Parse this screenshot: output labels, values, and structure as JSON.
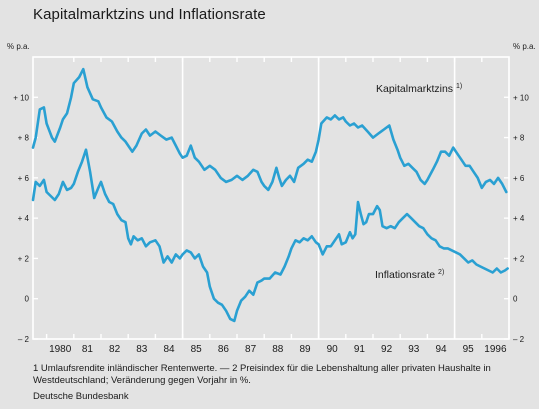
{
  "title": "Kapitalmarktzins und Inflationsrate",
  "footnote": {
    "line1": "1 Umlaufsrendite inländischer Rentenwerte. — 2 Preisindex für die Lebenshaltung aller privaten Haushalte in",
    "line2": "Westdeutschland; Veränderung gegen Vorjahr in %."
  },
  "source": "Deutsche Bundesbank",
  "chart_data": {
    "type": "line",
    "y_unit_left": "% p.a.",
    "y_unit_right": "% p.a.",
    "ylim": [
      -2,
      12
    ],
    "yticks": [
      -2,
      0,
      2,
      4,
      6,
      8,
      10
    ],
    "ytick_labels": [
      "– 2",
      "0",
      "+ 2",
      "+ 4",
      "+ 6",
      "+ 8",
      "+ 10"
    ],
    "xlim": [
      1979.5,
      1997.0
    ],
    "year_labels": [
      "1980",
      "81",
      "82",
      "83",
      "84",
      "85",
      "86",
      "87",
      "88",
      "89",
      "90",
      "91",
      "92",
      "93",
      "94",
      "95",
      "1996"
    ],
    "year_starts": [
      1980,
      1981,
      1982,
      1983,
      1984,
      1985,
      1986,
      1987,
      1988,
      1989,
      1990,
      1991,
      1992,
      1993,
      1994,
      1995,
      1996
    ],
    "grid_lines_at": [
      1985,
      1990,
      1995
    ],
    "color": "#2aa0d2",
    "series": [
      {
        "name": "Kapitalmarktzins",
        "footnote_mark": "1)",
        "points": [
          [
            1979.5,
            7.5
          ],
          [
            1979.6,
            8.0
          ],
          [
            1979.75,
            9.4
          ],
          [
            1979.9,
            9.5
          ],
          [
            1980.0,
            8.7
          ],
          [
            1980.2,
            8.0
          ],
          [
            1980.3,
            7.8
          ],
          [
            1980.5,
            8.5
          ],
          [
            1980.6,
            8.9
          ],
          [
            1980.75,
            9.2
          ],
          [
            1980.9,
            10.0
          ],
          [
            1981.0,
            10.7
          ],
          [
            1981.2,
            11.0
          ],
          [
            1981.35,
            11.4
          ],
          [
            1981.5,
            10.5
          ],
          [
            1981.7,
            9.9
          ],
          [
            1981.9,
            9.8
          ],
          [
            1982.0,
            9.5
          ],
          [
            1982.2,
            9.0
          ],
          [
            1982.4,
            8.8
          ],
          [
            1982.6,
            8.3
          ],
          [
            1982.75,
            8.0
          ],
          [
            1982.9,
            7.8
          ],
          [
            1983.0,
            7.6
          ],
          [
            1983.15,
            7.3
          ],
          [
            1983.3,
            7.6
          ],
          [
            1983.5,
            8.2
          ],
          [
            1983.65,
            8.4
          ],
          [
            1983.8,
            8.1
          ],
          [
            1984.0,
            8.3
          ],
          [
            1984.2,
            8.1
          ],
          [
            1984.4,
            7.9
          ],
          [
            1984.6,
            8.0
          ],
          [
            1984.75,
            7.6
          ],
          [
            1984.9,
            7.2
          ],
          [
            1985.0,
            7.0
          ],
          [
            1985.15,
            7.1
          ],
          [
            1985.3,
            7.6
          ],
          [
            1985.45,
            7.0
          ],
          [
            1985.6,
            6.8
          ],
          [
            1985.8,
            6.4
          ],
          [
            1986.0,
            6.6
          ],
          [
            1986.2,
            6.4
          ],
          [
            1986.4,
            6.0
          ],
          [
            1986.6,
            5.8
          ],
          [
            1986.8,
            5.9
          ],
          [
            1987.0,
            6.1
          ],
          [
            1987.2,
            5.9
          ],
          [
            1987.4,
            6.1
          ],
          [
            1987.6,
            6.4
          ],
          [
            1987.75,
            6.3
          ],
          [
            1987.9,
            5.8
          ],
          [
            1988.0,
            5.6
          ],
          [
            1988.15,
            5.4
          ],
          [
            1988.3,
            5.8
          ],
          [
            1988.45,
            6.5
          ],
          [
            1988.55,
            6.0
          ],
          [
            1988.65,
            5.6
          ],
          [
            1988.8,
            5.9
          ],
          [
            1988.95,
            6.1
          ],
          [
            1989.1,
            5.8
          ],
          [
            1989.25,
            6.5
          ],
          [
            1989.45,
            6.7
          ],
          [
            1989.6,
            6.9
          ],
          [
            1989.75,
            6.8
          ],
          [
            1989.9,
            7.3
          ],
          [
            1990.0,
            7.9
          ],
          [
            1990.1,
            8.7
          ],
          [
            1990.3,
            9.0
          ],
          [
            1990.45,
            8.9
          ],
          [
            1990.6,
            9.1
          ],
          [
            1990.75,
            8.9
          ],
          [
            1990.9,
            9.0
          ],
          [
            1991.0,
            8.8
          ],
          [
            1991.15,
            8.6
          ],
          [
            1991.3,
            8.7
          ],
          [
            1991.45,
            8.5
          ],
          [
            1991.6,
            8.6
          ],
          [
            1991.8,
            8.3
          ],
          [
            1992.0,
            8.0
          ],
          [
            1992.2,
            8.2
          ],
          [
            1992.4,
            8.4
          ],
          [
            1992.6,
            8.6
          ],
          [
            1992.75,
            7.9
          ],
          [
            1992.9,
            7.4
          ],
          [
            1993.0,
            7.0
          ],
          [
            1993.15,
            6.6
          ],
          [
            1993.3,
            6.7
          ],
          [
            1993.45,
            6.5
          ],
          [
            1993.6,
            6.3
          ],
          [
            1993.75,
            5.9
          ],
          [
            1993.9,
            5.7
          ],
          [
            1994.0,
            5.9
          ],
          [
            1994.2,
            6.4
          ],
          [
            1994.35,
            6.8
          ],
          [
            1994.5,
            7.3
          ],
          [
            1994.65,
            7.3
          ],
          [
            1994.8,
            7.1
          ],
          [
            1994.95,
            7.5
          ],
          [
            1995.1,
            7.2
          ],
          [
            1995.25,
            6.9
          ],
          [
            1995.4,
            6.6
          ],
          [
            1995.55,
            6.6
          ],
          [
            1995.7,
            6.3
          ],
          [
            1995.85,
            6.0
          ],
          [
            1996.0,
            5.5
          ],
          [
            1996.15,
            5.8
          ],
          [
            1996.3,
            5.9
          ],
          [
            1996.45,
            5.7
          ],
          [
            1996.6,
            6.0
          ],
          [
            1996.75,
            5.7
          ],
          [
            1996.9,
            5.3
          ]
        ]
      },
      {
        "name": "Inflationsrate",
        "footnote_mark": "2)",
        "points": [
          [
            1979.5,
            4.9
          ],
          [
            1979.6,
            5.8
          ],
          [
            1979.75,
            5.6
          ],
          [
            1979.9,
            5.9
          ],
          [
            1980.0,
            5.3
          ],
          [
            1980.15,
            5.1
          ],
          [
            1980.3,
            4.9
          ],
          [
            1980.45,
            5.2
          ],
          [
            1980.6,
            5.8
          ],
          [
            1980.75,
            5.4
          ],
          [
            1980.9,
            5.5
          ],
          [
            1981.0,
            5.7
          ],
          [
            1981.15,
            6.3
          ],
          [
            1981.3,
            6.8
          ],
          [
            1981.45,
            7.4
          ],
          [
            1981.6,
            6.3
          ],
          [
            1981.75,
            5.0
          ],
          [
            1981.9,
            5.5
          ],
          [
            1982.0,
            5.8
          ],
          [
            1982.15,
            5.2
          ],
          [
            1982.3,
            4.8
          ],
          [
            1982.45,
            4.7
          ],
          [
            1982.6,
            4.2
          ],
          [
            1982.75,
            3.9
          ],
          [
            1982.9,
            3.8
          ],
          [
            1983.0,
            3.0
          ],
          [
            1983.1,
            2.7
          ],
          [
            1983.2,
            3.1
          ],
          [
            1983.35,
            2.9
          ],
          [
            1983.5,
            3.0
          ],
          [
            1983.65,
            2.6
          ],
          [
            1983.8,
            2.8
          ],
          [
            1984.0,
            2.9
          ],
          [
            1984.15,
            2.6
          ],
          [
            1984.3,
            1.8
          ],
          [
            1984.45,
            2.1
          ],
          [
            1984.6,
            1.8
          ],
          [
            1984.75,
            2.2
          ],
          [
            1984.9,
            2.0
          ],
          [
            1985.0,
            2.2
          ],
          [
            1985.15,
            2.4
          ],
          [
            1985.3,
            2.3
          ],
          [
            1985.45,
            2.0
          ],
          [
            1985.6,
            2.2
          ],
          [
            1985.75,
            1.6
          ],
          [
            1985.9,
            1.3
          ],
          [
            1986.0,
            0.6
          ],
          [
            1986.15,
            0.0
          ],
          [
            1986.3,
            -0.2
          ],
          [
            1986.45,
            -0.3
          ],
          [
            1986.6,
            -0.6
          ],
          [
            1986.75,
            -1.0
          ],
          [
            1986.9,
            -1.1
          ],
          [
            1987.0,
            -0.6
          ],
          [
            1987.15,
            -0.1
          ],
          [
            1987.3,
            0.1
          ],
          [
            1987.45,
            0.4
          ],
          [
            1987.6,
            0.2
          ],
          [
            1987.75,
            0.8
          ],
          [
            1987.9,
            0.9
          ],
          [
            1988.0,
            1.0
          ],
          [
            1988.2,
            1.0
          ],
          [
            1988.4,
            1.3
          ],
          [
            1988.6,
            1.2
          ],
          [
            1988.75,
            1.6
          ],
          [
            1988.9,
            2.1
          ],
          [
            1989.0,
            2.5
          ],
          [
            1989.15,
            2.9
          ],
          [
            1989.3,
            2.8
          ],
          [
            1989.45,
            3.0
          ],
          [
            1989.6,
            2.9
          ],
          [
            1989.75,
            3.1
          ],
          [
            1989.9,
            2.8
          ],
          [
            1990.0,
            2.7
          ],
          [
            1990.15,
            2.2
          ],
          [
            1990.3,
            2.6
          ],
          [
            1990.45,
            2.6
          ],
          [
            1990.6,
            2.9
          ],
          [
            1990.75,
            3.2
          ],
          [
            1990.85,
            2.7
          ],
          [
            1991.0,
            2.8
          ],
          [
            1991.15,
            3.3
          ],
          [
            1991.25,
            3.0
          ],
          [
            1991.35,
            3.2
          ],
          [
            1991.45,
            4.8
          ],
          [
            1991.55,
            4.2
          ],
          [
            1991.65,
            3.7
          ],
          [
            1991.75,
            3.8
          ],
          [
            1991.85,
            4.2
          ],
          [
            1992.0,
            4.2
          ],
          [
            1992.15,
            4.6
          ],
          [
            1992.25,
            4.4
          ],
          [
            1992.35,
            3.6
          ],
          [
            1992.5,
            3.5
          ],
          [
            1992.65,
            3.6
          ],
          [
            1992.8,
            3.5
          ],
          [
            1992.95,
            3.8
          ],
          [
            1993.1,
            4.0
          ],
          [
            1993.25,
            4.2
          ],
          [
            1993.4,
            4.0
          ],
          [
            1993.55,
            3.8
          ],
          [
            1993.7,
            3.6
          ],
          [
            1993.85,
            3.5
          ],
          [
            1994.0,
            3.2
          ],
          [
            1994.15,
            3.0
          ],
          [
            1994.3,
            2.9
          ],
          [
            1994.45,
            2.6
          ],
          [
            1994.6,
            2.5
          ],
          [
            1994.75,
            2.5
          ],
          [
            1994.9,
            2.4
          ],
          [
            1995.05,
            2.3
          ],
          [
            1995.2,
            2.2
          ],
          [
            1995.35,
            2.0
          ],
          [
            1995.5,
            1.8
          ],
          [
            1995.65,
            1.9
          ],
          [
            1995.8,
            1.7
          ],
          [
            1995.95,
            1.6
          ],
          [
            1996.1,
            1.5
          ],
          [
            1996.25,
            1.4
          ],
          [
            1996.4,
            1.3
          ],
          [
            1996.55,
            1.5
          ],
          [
            1996.7,
            1.3
          ],
          [
            1996.85,
            1.4
          ],
          [
            1996.95,
            1.5
          ]
        ]
      }
    ]
  }
}
